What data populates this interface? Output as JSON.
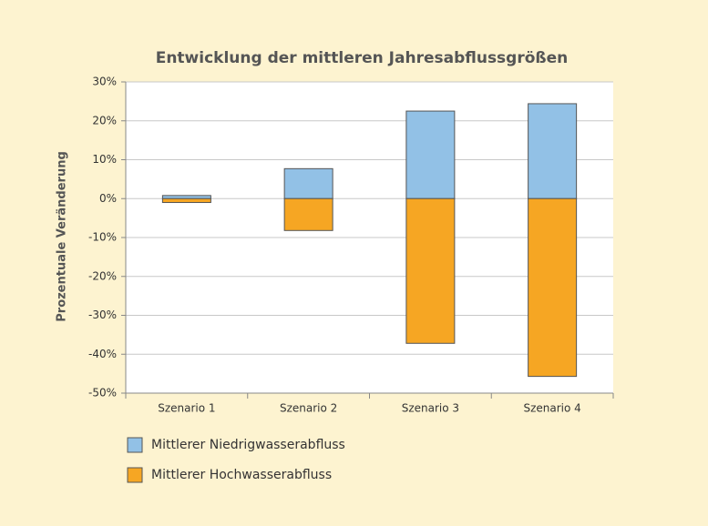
{
  "chart_data": {
    "type": "bar",
    "stacked": true,
    "title": "Entwicklung der mittleren Jahresabflussgrößen",
    "y_label": "Prozentuale Veränderung",
    "categories": [
      "Szenario 1",
      "Szenario 2",
      "Szenario 3",
      "Szenario 4"
    ],
    "series": [
      {
        "name": "Mittlerer Niedrigwasserabfluss",
        "color": "#92c1e6",
        "values": [
          0.8,
          7.7,
          22.5,
          24.4
        ]
      },
      {
        "name": "Mittlerer Hochwasserabfluss",
        "color": "#f6a623",
        "values": [
          -1,
          -8.2,
          -37.2,
          -45.7
        ]
      }
    ],
    "ylim": [
      -50,
      30
    ],
    "yticks": [
      {
        "value": -50,
        "label": "-50%"
      },
      {
        "value": -40,
        "label": "-40%"
      },
      {
        "value": -30,
        "label": "-30%"
      },
      {
        "value": -20,
        "label": "-20%"
      },
      {
        "value": -10,
        "label": "-10%"
      },
      {
        "value": 0,
        "label": "0%"
      },
      {
        "value": 10,
        "label": "10%"
      },
      {
        "value": 20,
        "label": "20%"
      },
      {
        "value": 30,
        "label": "30%"
      }
    ],
    "grid": true
  }
}
